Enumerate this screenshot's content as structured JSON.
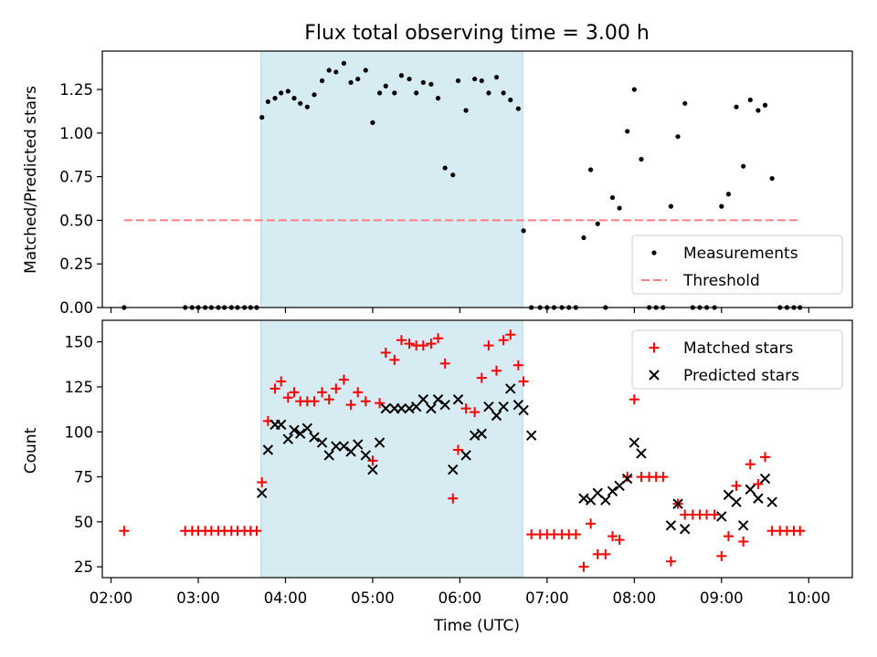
{
  "chart_data": [
    {
      "type": "scatter",
      "title": "Flux total observing time = 3.00 h",
      "xlabel": "",
      "ylabel": "Matched/Predicted stars",
      "xlim_hours": [
        1.9,
        10.5
      ],
      "ylim": [
        0,
        1.47
      ],
      "yticks": [
        0,
        0.25,
        0.5,
        0.75,
        1.0,
        1.25
      ],
      "ytick_labels": [
        "0.00",
        "0.25",
        "0.50",
        "0.75",
        "1.00",
        "1.25"
      ],
      "shaded_interval_hours": [
        3.72,
        6.72
      ],
      "threshold": {
        "value": 0.5,
        "x_start": 2.15,
        "x_end": 9.9,
        "color": "#ff7f7f"
      },
      "legend": {
        "position": "lower-right",
        "entries": [
          "Measurements",
          "Threshold"
        ]
      },
      "series": [
        {
          "name": "Measurements",
          "color": "#000000",
          "x": [
            2.15,
            2.85,
            2.93,
            3.0,
            3.08,
            3.15,
            3.23,
            3.3,
            3.38,
            3.45,
            3.53,
            3.6,
            3.67,
            3.73,
            3.8,
            3.88,
            3.95,
            4.03,
            4.1,
            4.17,
            4.25,
            4.33,
            4.42,
            4.5,
            4.58,
            4.67,
            4.75,
            4.83,
            4.92,
            5.0,
            5.08,
            5.15,
            5.25,
            5.33,
            5.42,
            5.5,
            5.58,
            5.67,
            5.75,
            5.83,
            5.92,
            5.98,
            6.07,
            6.17,
            6.25,
            6.33,
            6.42,
            6.5,
            6.58,
            6.67,
            6.73,
            6.82,
            6.92,
            7.0,
            7.08,
            7.17,
            7.25,
            7.33,
            7.42,
            7.5,
            7.58,
            7.67,
            7.75,
            7.83,
            7.92,
            8.0,
            8.08,
            8.17,
            8.25,
            8.33,
            8.42,
            8.5,
            8.58,
            8.67,
            8.75,
            8.83,
            8.92,
            9.0,
            9.08,
            9.17,
            9.25,
            9.33,
            9.42,
            9.5,
            9.58,
            9.67,
            9.75,
            9.83,
            9.9
          ],
          "y": [
            0.0,
            0.0,
            0.0,
            0.0,
            0.0,
            0.0,
            0.0,
            0.0,
            0.0,
            0.0,
            0.0,
            0.0,
            0.0,
            1.09,
            1.18,
            1.2,
            1.23,
            1.24,
            1.2,
            1.17,
            1.15,
            1.22,
            1.3,
            1.36,
            1.35,
            1.4,
            1.29,
            1.31,
            1.36,
            1.06,
            1.23,
            1.27,
            1.23,
            1.33,
            1.31,
            1.23,
            1.29,
            1.28,
            1.2,
            0.8,
            0.76,
            1.3,
            1.13,
            1.31,
            1.3,
            1.23,
            1.32,
            1.23,
            1.19,
            1.14,
            0.44,
            0.0,
            0.0,
            0.0,
            0.0,
            0.0,
            0.0,
            0.0,
            0.4,
            0.79,
            0.48,
            0.0,
            0.63,
            0.57,
            1.01,
            1.25,
            0.85,
            0.0,
            0.0,
            0.0,
            0.58,
            0.98,
            1.17,
            0.0,
            0.0,
            0.0,
            0.0,
            0.58,
            0.65,
            1.15,
            0.81,
            1.19,
            1.13,
            1.16,
            0.74,
            0.0,
            0.0,
            0.0,
            0.0
          ]
        }
      ]
    },
    {
      "type": "scatter",
      "title": "",
      "xlabel": "Time (UTC)",
      "ylabel": "Count",
      "xlim_hours": [
        1.9,
        10.5
      ],
      "ylim": [
        19,
        162
      ],
      "yticks": [
        25,
        50,
        75,
        100,
        125,
        150
      ],
      "ytick_labels": [
        "25",
        "50",
        "75",
        "100",
        "125",
        "150"
      ],
      "xticks_hours": [
        2,
        3,
        4,
        5,
        6,
        7,
        8,
        9,
        10
      ],
      "xtick_labels": [
        "02:00",
        "03:00",
        "04:00",
        "05:00",
        "06:00",
        "07:00",
        "08:00",
        "09:00",
        "10:00"
      ],
      "shaded_interval_hours": [
        3.72,
        6.72
      ],
      "legend": {
        "position": "top-right",
        "entries": [
          "Matched stars",
          "Predicted stars"
        ]
      },
      "series": [
        {
          "name": "Matched stars",
          "marker": "plus",
          "color": "#ff0000",
          "x": [
            2.15,
            2.85,
            2.93,
            3.0,
            3.08,
            3.15,
            3.23,
            3.3,
            3.38,
            3.45,
            3.53,
            3.6,
            3.67,
            3.73,
            3.8,
            3.88,
            3.95,
            4.03,
            4.1,
            4.17,
            4.25,
            4.33,
            4.42,
            4.5,
            4.58,
            4.67,
            4.75,
            4.83,
            4.92,
            5.0,
            5.08,
            5.15,
            5.25,
            5.33,
            5.42,
            5.5,
            5.58,
            5.67,
            5.75,
            5.83,
            5.92,
            5.98,
            6.07,
            6.17,
            6.25,
            6.33,
            6.42,
            6.5,
            6.58,
            6.67,
            6.73,
            6.82,
            6.92,
            7.0,
            7.08,
            7.17,
            7.25,
            7.33,
            7.42,
            7.5,
            7.58,
            7.67,
            7.75,
            7.83,
            7.92,
            8.0,
            8.08,
            8.17,
            8.25,
            8.33,
            8.42,
            8.5,
            8.58,
            8.67,
            8.75,
            8.83,
            8.92,
            9.0,
            9.08,
            9.17,
            9.25,
            9.33,
            9.42,
            9.5,
            9.58,
            9.67,
            9.75,
            9.83,
            9.9
          ],
          "y": [
            45,
            45,
            45,
            45,
            45,
            45,
            45,
            45,
            45,
            45,
            45,
            45,
            45,
            72,
            106,
            124,
            128,
            119,
            122,
            117,
            117,
            117,
            122,
            118,
            124,
            129,
            115,
            122,
            117,
            84,
            116,
            144,
            140,
            151,
            149,
            148,
            148,
            149,
            152,
            138,
            63,
            90,
            113,
            111,
            130,
            148,
            134,
            151,
            154,
            137,
            128,
            43,
            43,
            43,
            43,
            43,
            43,
            43,
            25,
            49,
            32,
            32,
            42,
            40,
            75,
            118,
            75,
            75,
            75,
            75,
            28,
            60,
            54,
            54,
            54,
            54,
            54,
            31,
            42,
            70,
            39,
            82,
            71,
            86,
            45,
            45,
            45,
            45,
            45
          ]
        },
        {
          "name": "Predicted stars",
          "marker": "x",
          "color": "#000000",
          "x": [
            3.73,
            3.8,
            3.88,
            3.95,
            4.03,
            4.1,
            4.17,
            4.25,
            4.33,
            4.42,
            4.5,
            4.58,
            4.67,
            4.75,
            4.83,
            4.92,
            5.0,
            5.08,
            5.15,
            5.25,
            5.33,
            5.42,
            5.5,
            5.58,
            5.67,
            5.75,
            5.83,
            5.92,
            5.98,
            6.07,
            6.17,
            6.25,
            6.33,
            6.42,
            6.5,
            6.58,
            6.67,
            6.73,
            6.82,
            7.42,
            7.5,
            7.58,
            7.67,
            7.75,
            7.83,
            7.92,
            8.0,
            8.08,
            8.42,
            8.5,
            8.58,
            9.0,
            9.08,
            9.17,
            9.25,
            9.33,
            9.42,
            9.5,
            9.58
          ],
          "y": [
            66,
            90,
            104,
            104,
            96,
            101,
            99,
            102,
            97,
            94,
            87,
            92,
            92,
            89,
            93,
            87,
            79,
            94,
            113,
            113,
            113,
            113,
            114,
            118,
            113,
            118,
            115,
            79,
            118,
            87,
            98,
            99,
            114,
            109,
            114,
            124,
            115,
            112,
            98,
            63,
            62,
            66,
            62,
            67,
            70,
            74,
            94,
            88,
            48,
            60,
            46,
            53,
            65,
            61,
            48,
            68,
            63,
            74,
            61
          ]
        }
      ]
    }
  ]
}
